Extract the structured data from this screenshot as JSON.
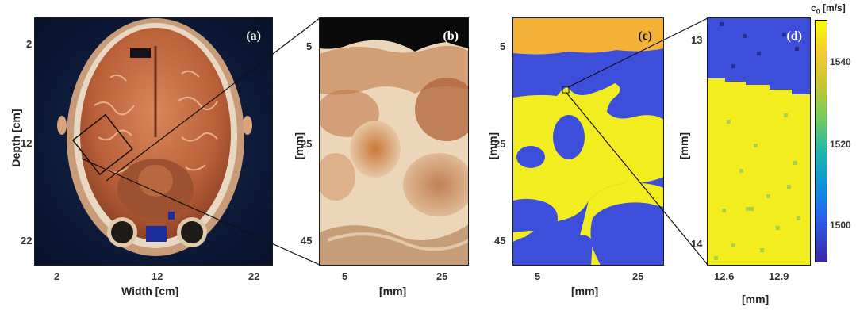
{
  "panels": [
    {
      "label": "(a)",
      "image": "axial head cryosection photograph"
    },
    {
      "label": "(b)",
      "image": "zoomed brain tissue photograph"
    },
    {
      "label": "(c)",
      "image": "segmented sound speed map"
    },
    {
      "label": "(d)",
      "image": "zoomed sound speed map"
    }
  ],
  "panel_a": {
    "y_ticks": [
      "2",
      "12",
      "22"
    ],
    "x_ticks": [
      "2",
      "12",
      "22"
    ],
    "ylabel": "Depth [cm]",
    "xlabel": "Width [cm]"
  },
  "panel_b": {
    "y_ticks": [
      "5",
      "25",
      "45"
    ],
    "x_ticks": [
      "5",
      "25"
    ],
    "ylabel": "[mm]",
    "xlabel": "[mm]"
  },
  "panel_c": {
    "y_ticks": [
      "5",
      "25",
      "45"
    ],
    "x_ticks": [
      "5",
      "25"
    ],
    "ylabel": "[mm]",
    "xlabel": "[mm]"
  },
  "panel_d": {
    "y_ticks": [
      "13",
      "14"
    ],
    "x_ticks": [
      "12.6",
      "12.9"
    ],
    "ylabel": "[mm]",
    "xlabel": "[mm]"
  },
  "colorbar": {
    "title_main": "c",
    "title_sub": "0",
    "title_unit": " [m/s]",
    "ticks": [
      "1540",
      "1520",
      "1500"
    ],
    "colors": {
      "low": "#3e26a8",
      "mid": "#1fb5b0",
      "high": "#f9fb0e"
    }
  }
}
